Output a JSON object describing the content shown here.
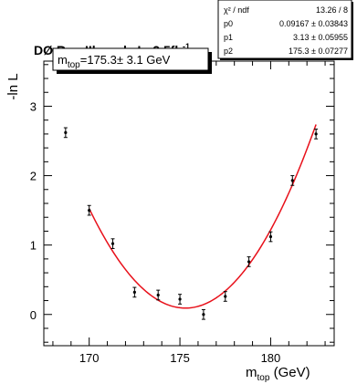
{
  "chart_data": {
    "type": "scatter",
    "title": "DØ Run IIb prel., L=2.5fb",
    "title_sup": "-1",
    "xlabel_main": "m",
    "xlabel_sub": "top",
    "xlabel_unit": " (GeV)",
    "ylabel": "-ln L",
    "xlim": [
      167.5,
      183.5
    ],
    "ylim": [
      -0.45,
      3.65
    ],
    "x_ticks": [
      170,
      175,
      180
    ],
    "y_ticks": [
      0,
      1,
      2,
      3
    ],
    "grid": false,
    "series": [
      {
        "x": [
          168.7,
          170.0,
          171.3,
          172.5,
          173.8,
          175.0,
          176.3,
          177.5,
          178.8,
          180.0,
          181.2,
          182.5
        ],
        "y": [
          2.62,
          1.5,
          1.02,
          0.32,
          0.28,
          0.22,
          0.0,
          0.26,
          0.76,
          1.12,
          1.93,
          2.6
        ],
        "yerr": [
          0.07,
          0.07,
          0.07,
          0.07,
          0.07,
          0.07,
          0.07,
          0.07,
          0.07,
          0.07,
          0.07,
          0.07
        ]
      }
    ],
    "fit": {
      "function": "p0 + (x - p2)^2 / (2 * p1^2)",
      "x_range": [
        170.0,
        182.5
      ],
      "color": "#e8101a"
    },
    "annotation": {
      "label_main": "m",
      "label_sub": "top",
      "label_rest": "=175.3± 3.1 GeV"
    },
    "stats_box": {
      "rows": [
        {
          "name": "χ² / ndf",
          "value": "13.26 / 8"
        },
        {
          "name": "p0",
          "value": "0.09167 ± 0.03843"
        },
        {
          "name": "p1",
          "value": "3.13 ± 0.05955"
        },
        {
          "name": "p2",
          "value": "175.3 ± 0.07277"
        }
      ],
      "params": {
        "p0": 0.09167,
        "p1": 3.13,
        "p2": 175.3
      }
    }
  }
}
